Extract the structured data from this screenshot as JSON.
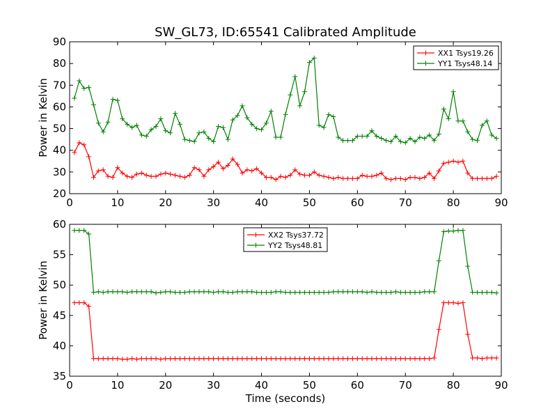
{
  "chart_data": [
    {
      "type": "line",
      "title": "SW_GL73, ID:65541 Calibrated Amplitude",
      "xlabel": "",
      "ylabel": "Power in Kelvin",
      "xlim": [
        0,
        90
      ],
      "ylim": [
        20,
        90
      ],
      "xticks": [
        0,
        10,
        20,
        30,
        40,
        50,
        60,
        70,
        80,
        90
      ],
      "yticks": [
        20,
        30,
        40,
        50,
        60,
        70,
        80,
        90
      ],
      "grid": false,
      "legend_position": "top-right",
      "x": [
        1,
        2,
        3,
        4,
        5,
        6,
        7,
        8,
        9,
        10,
        11,
        12,
        13,
        14,
        15,
        16,
        17,
        18,
        19,
        20,
        21,
        22,
        23,
        24,
        25,
        26,
        27,
        28,
        29,
        30,
        31,
        32,
        33,
        34,
        35,
        36,
        37,
        38,
        39,
        40,
        41,
        42,
        43,
        44,
        45,
        46,
        47,
        48,
        49,
        50,
        51,
        52,
        53,
        54,
        55,
        56,
        57,
        58,
        59,
        60,
        61,
        62,
        63,
        64,
        65,
        66,
        67,
        68,
        69,
        70,
        71,
        72,
        73,
        74,
        75,
        76,
        77,
        78,
        79,
        80,
        81,
        82,
        83,
        84,
        85,
        86,
        87,
        88,
        89
      ],
      "series": [
        {
          "name": "XX1 Tsys19.26",
          "color": "#ff0000",
          "values": [
            39,
            43.5,
            42.5,
            37,
            27.5,
            30.5,
            31,
            28,
            27.5,
            32,
            29.5,
            28,
            27.5,
            29,
            29.5,
            28.5,
            28,
            28,
            29,
            29.5,
            29,
            28.5,
            28,
            27.5,
            28.5,
            32,
            31,
            28,
            31,
            32.5,
            34.5,
            31.5,
            33,
            36,
            33.5,
            29.5,
            31,
            30.5,
            31.5,
            29.5,
            27.5,
            27.5,
            26.5,
            28,
            27.5,
            28.5,
            31,
            29,
            28.5,
            28.5,
            30,
            28.5,
            28,
            27.5,
            27,
            27.5,
            27,
            27,
            27,
            27,
            28.5,
            28,
            28,
            28.5,
            29.5,
            27,
            26.5,
            27,
            27,
            26.5,
            27.5,
            27.5,
            27,
            27.5,
            29.5,
            27,
            30.5,
            34,
            34.5,
            35,
            34.5,
            35,
            29.5,
            27,
            27,
            27,
            27,
            27,
            28
          ]
        },
        {
          "name": "YY1 Tsys48.14",
          "color": "#008000",
          "values": [
            64,
            72,
            68.5,
            69,
            61,
            52.5,
            48.5,
            53,
            63.5,
            63,
            54.5,
            52,
            50.5,
            51.5,
            47,
            46.5,
            49.5,
            51,
            54.5,
            49,
            48,
            57,
            52,
            45,
            44.5,
            44,
            48,
            48.5,
            45.5,
            44,
            51,
            50.5,
            45,
            54,
            56,
            60.5,
            55,
            52,
            50,
            49.5,
            52.5,
            58,
            46,
            46,
            56.5,
            65.5,
            74,
            60.5,
            67,
            80.5,
            82.5,
            51.5,
            50.5,
            56.5,
            55.5,
            46,
            44.5,
            44.5,
            44.5,
            46.5,
            46.5,
            46.5,
            49,
            46.5,
            45.5,
            44.5,
            44,
            46.5,
            44,
            43.5,
            45.5,
            44,
            46,
            45.5,
            47,
            44.5,
            47.5,
            59,
            54.5,
            67,
            53.5,
            53.5,
            48.5,
            45,
            44.5,
            51.5,
            53.5,
            47,
            45.5
          ]
        }
      ]
    },
    {
      "type": "line",
      "title": "",
      "xlabel": "Time (seconds)",
      "ylabel": "Power in Kelvin",
      "xlim": [
        0,
        90
      ],
      "ylim": [
        35,
        60
      ],
      "xticks": [
        0,
        10,
        20,
        30,
        40,
        50,
        60,
        70,
        80,
        90
      ],
      "yticks": [
        35,
        40,
        45,
        50,
        55,
        60
      ],
      "grid": false,
      "legend_position": "top-center",
      "x": [
        1,
        2,
        3,
        4,
        5,
        6,
        7,
        8,
        9,
        10,
        11,
        12,
        13,
        14,
        15,
        16,
        17,
        18,
        19,
        20,
        21,
        22,
        23,
        24,
        25,
        26,
        27,
        28,
        29,
        30,
        31,
        32,
        33,
        34,
        35,
        36,
        37,
        38,
        39,
        40,
        41,
        42,
        43,
        44,
        45,
        46,
        47,
        48,
        49,
        50,
        51,
        52,
        53,
        54,
        55,
        56,
        57,
        58,
        59,
        60,
        61,
        62,
        63,
        64,
        65,
        66,
        67,
        68,
        69,
        70,
        71,
        72,
        73,
        74,
        75,
        76,
        77,
        78,
        79,
        80,
        81,
        82,
        83,
        84,
        85,
        86,
        87,
        88,
        89
      ],
      "series": [
        {
          "name": "XX2 Tsys37.72",
          "color": "#ff0000",
          "values": [
            47.1,
            47.1,
            47.1,
            46.5,
            37.9,
            37.9,
            37.9,
            37.9,
            37.9,
            37.9,
            37.8,
            37.8,
            37.9,
            37.8,
            37.9,
            37.9,
            37.9,
            37.9,
            37.8,
            37.9,
            37.9,
            37.9,
            37.9,
            37.9,
            37.9,
            37.9,
            37.9,
            37.9,
            37.9,
            37.9,
            37.9,
            37.9,
            37.9,
            37.9,
            37.9,
            37.9,
            37.9,
            37.9,
            37.9,
            37.9,
            37.9,
            37.9,
            37.9,
            37.9,
            37.9,
            37.9,
            37.9,
            37.9,
            37.9,
            37.9,
            37.9,
            37.9,
            37.9,
            37.9,
            37.9,
            37.9,
            37.9,
            37.9,
            37.9,
            37.9,
            37.9,
            37.9,
            37.9,
            37.9,
            37.9,
            37.9,
            37.9,
            37.9,
            37.9,
            37.9,
            37.9,
            37.9,
            37.9,
            37.9,
            37.9,
            38.0,
            42.7,
            47.1,
            47.1,
            47.1,
            47.0,
            47.1,
            41.9,
            38.0,
            38.0,
            37.9,
            38.0,
            38.0,
            38.0
          ]
        },
        {
          "name": "YY2 Tsys48.81",
          "color": "#008000",
          "values": [
            59.0,
            59.0,
            59.0,
            58.4,
            48.8,
            48.9,
            48.8,
            48.9,
            48.9,
            48.9,
            48.9,
            48.8,
            48.9,
            48.9,
            48.9,
            48.9,
            48.9,
            48.7,
            48.8,
            48.9,
            48.9,
            48.8,
            48.8,
            48.8,
            48.9,
            48.9,
            48.9,
            48.9,
            48.9,
            48.8,
            48.9,
            48.9,
            48.8,
            48.8,
            48.9,
            48.9,
            48.9,
            48.9,
            48.8,
            48.8,
            48.8,
            48.8,
            48.9,
            48.9,
            48.8,
            48.8,
            48.8,
            48.8,
            48.8,
            48.8,
            48.8,
            48.8,
            48.8,
            48.8,
            48.9,
            48.9,
            48.9,
            48.9,
            48.9,
            48.9,
            48.9,
            48.8,
            48.9,
            48.8,
            48.8,
            48.8,
            48.8,
            48.9,
            48.8,
            48.8,
            48.8,
            48.8,
            48.8,
            48.9,
            48.9,
            48.9,
            54.0,
            58.8,
            58.9,
            58.9,
            59.0,
            59.0,
            53.1,
            48.8,
            48.8,
            48.8,
            48.8,
            48.8,
            48.7
          ]
        }
      ]
    }
  ]
}
